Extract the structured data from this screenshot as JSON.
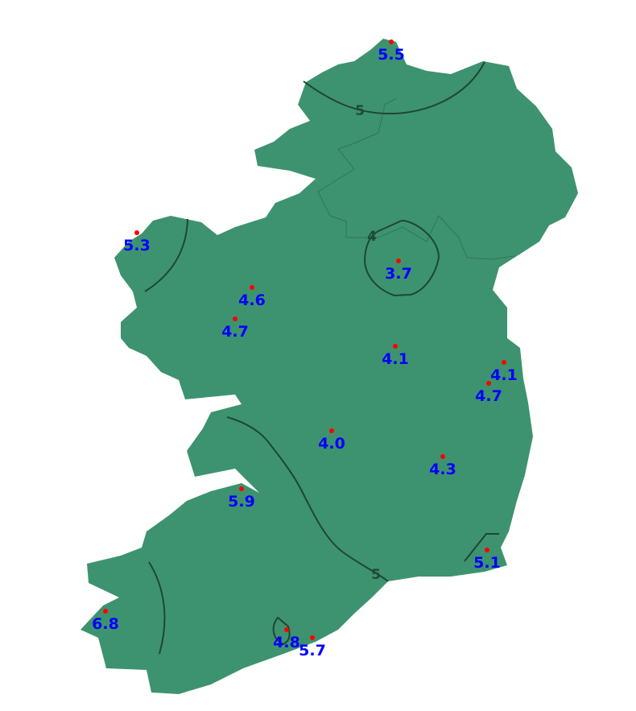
{
  "colors": {
    "land": "#3d936f",
    "contour": "#1e4636",
    "station_dot": "#ff0000",
    "station_label": "#0000ff",
    "border": "#2f7658"
  },
  "contour_labels": [
    "5",
    "4",
    "5"
  ],
  "stations": [
    {
      "value": "5.5"
    },
    {
      "value": "5.3"
    },
    {
      "value": "4.6"
    },
    {
      "value": "4.7"
    },
    {
      "value": "3.7"
    },
    {
      "value": "4.1"
    },
    {
      "value": "4.1"
    },
    {
      "value": "4.7"
    },
    {
      "value": "4.0"
    },
    {
      "value": "4.3"
    },
    {
      "value": "5.9"
    },
    {
      "value": "5.1"
    },
    {
      "value": "6.8"
    },
    {
      "value": "4.8"
    },
    {
      "value": "5.7"
    }
  ]
}
